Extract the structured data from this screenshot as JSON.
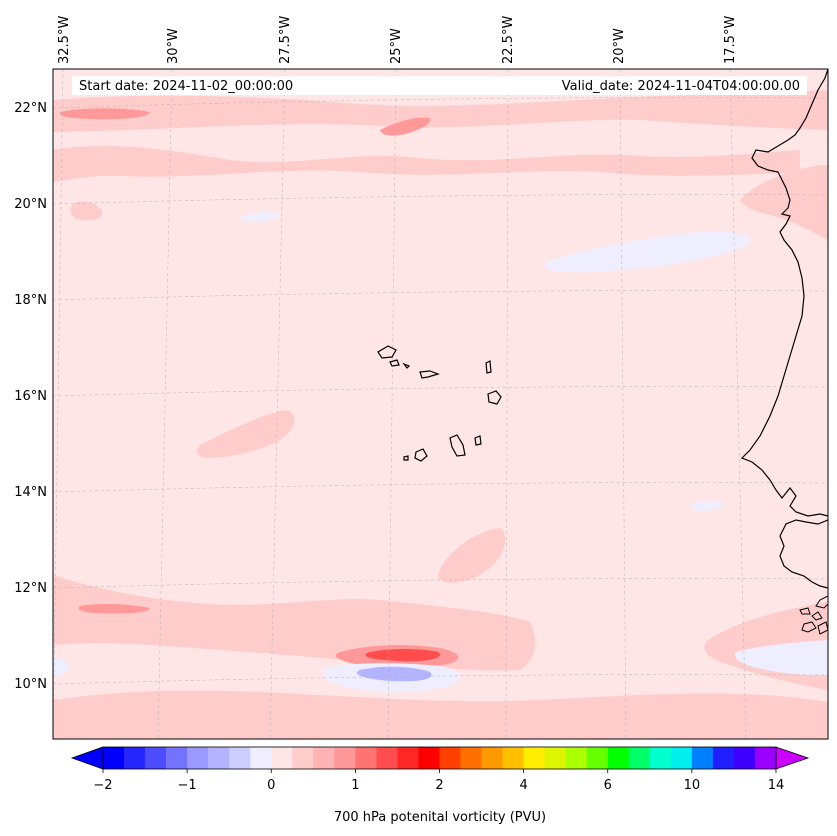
{
  "header": {
    "start_date": "Start date: 2024-11-02_00:00:00",
    "valid_date": "Valid_date: 2024-11-04T04:00:00.00"
  },
  "map": {
    "lon_labels": [
      "32.5°W",
      "30°W",
      "27.5°W",
      "25°W",
      "22.5°W",
      "20°W",
      "17.5°W"
    ],
    "lat_labels": [
      "22°N",
      "20°N",
      "18°N",
      "16°N",
      "14°N",
      "12°N",
      "10°N"
    ],
    "gridlines": "dashed, light grey",
    "field_colors": {
      "background": "#ffe6e6",
      "light_red": "#ffcccc",
      "mid_red": "#ff9999",
      "strong_red": "#ff4d4d",
      "light_blue": "#eeeeff",
      "mid_blue": "#b3b3ff"
    }
  },
  "colorbar": {
    "label": "700 hPa potenital vorticity (PVU)",
    "tick_labels": [
      "−2",
      "−1",
      "0",
      "1",
      "2",
      "4",
      "6",
      "10",
      "14"
    ],
    "colors": [
      "#0000ff",
      "#2626ff",
      "#4d4dff",
      "#7373ff",
      "#9999ff",
      "#b3b3ff",
      "#ccccff",
      "#eeeeff",
      "#ffe6e6",
      "#ffcccc",
      "#ffb3b3",
      "#ff9999",
      "#ff7373",
      "#ff4d4d",
      "#ff2626",
      "#ff0000",
      "#ff4000",
      "#ff7000",
      "#ff9900",
      "#ffc000",
      "#ffee00",
      "#ddf500",
      "#aaff00",
      "#66ff00",
      "#00ff00",
      "#00ff66",
      "#00ffcc",
      "#00eeee",
      "#0080ff",
      "#2020ff",
      "#4000ff",
      "#9900ff"
    ],
    "extend_low_color": "#0000ff",
    "extend_high_color": "#cc00ff"
  }
}
